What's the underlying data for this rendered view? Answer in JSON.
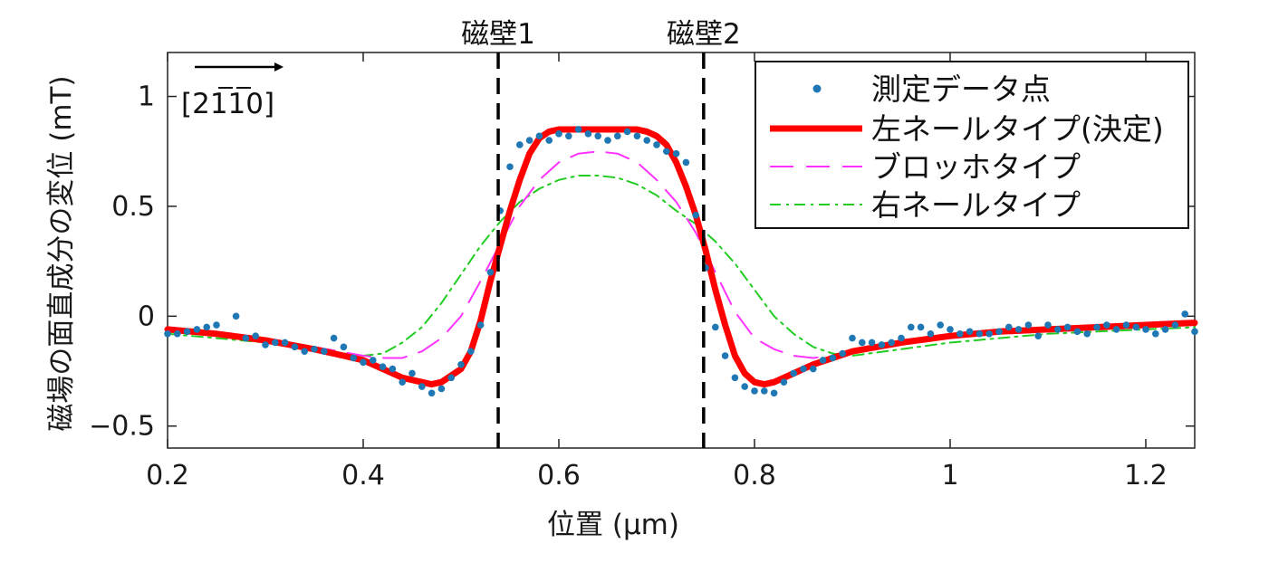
{
  "chart_data": {
    "type": "line",
    "title": "",
    "xlabel": "位置 (μm)",
    "ylabel": "磁場の面直成分の変位 (mT)",
    "xlim": [
      0.2,
      1.25
    ],
    "ylim": [
      -0.6,
      1.2
    ],
    "xticks": [
      0.2,
      0.4,
      0.6,
      0.8,
      1.0,
      1.2
    ],
    "xtick_labels": [
      "0.2",
      "0.4",
      "0.6",
      "0.8",
      "1",
      "1.2"
    ],
    "yticks": [
      -0.5,
      0,
      0.5,
      1.0
    ],
    "ytick_labels": [
      "−0.5",
      "0",
      "0.5",
      "1"
    ],
    "grid": false,
    "legend_position": "top-right",
    "direction_label": "[2110]",
    "walls": [
      {
        "label": "磁壁1",
        "x": 0.538
      },
      {
        "label": "磁壁2",
        "x": 0.748
      }
    ],
    "series": [
      {
        "name": "測定データ点",
        "style": "scatter",
        "color": "#1f77b4",
        "x": [
          0.2,
          0.21,
          0.22,
          0.23,
          0.24,
          0.25,
          0.27,
          0.28,
          0.29,
          0.3,
          0.31,
          0.32,
          0.33,
          0.34,
          0.35,
          0.36,
          0.37,
          0.38,
          0.39,
          0.4,
          0.41,
          0.42,
          0.43,
          0.44,
          0.45,
          0.46,
          0.47,
          0.48,
          0.49,
          0.5,
          0.51,
          0.52,
          0.53,
          0.54,
          0.55,
          0.56,
          0.57,
          0.58,
          0.59,
          0.6,
          0.61,
          0.62,
          0.63,
          0.64,
          0.65,
          0.66,
          0.67,
          0.68,
          0.69,
          0.7,
          0.71,
          0.72,
          0.73,
          0.74,
          0.75,
          0.76,
          0.77,
          0.78,
          0.79,
          0.8,
          0.81,
          0.82,
          0.83,
          0.84,
          0.85,
          0.86,
          0.87,
          0.88,
          0.89,
          0.9,
          0.91,
          0.92,
          0.93,
          0.94,
          0.95,
          0.96,
          0.97,
          0.98,
          0.99,
          1.0,
          1.01,
          1.02,
          1.03,
          1.04,
          1.05,
          1.06,
          1.07,
          1.08,
          1.09,
          1.1,
          1.11,
          1.12,
          1.13,
          1.14,
          1.15,
          1.16,
          1.17,
          1.18,
          1.19,
          1.2,
          1.21,
          1.22,
          1.23,
          1.24,
          1.25
        ],
        "y": [
          -0.08,
          -0.08,
          -0.07,
          -0.06,
          -0.05,
          -0.04,
          0.0,
          -0.1,
          -0.09,
          -0.13,
          -0.12,
          -0.12,
          -0.14,
          -0.16,
          -0.15,
          -0.16,
          -0.1,
          -0.14,
          -0.19,
          -0.21,
          -0.2,
          -0.23,
          -0.24,
          -0.3,
          -0.26,
          -0.32,
          -0.35,
          -0.33,
          -0.28,
          -0.22,
          -0.16,
          -0.04,
          0.2,
          0.48,
          0.68,
          0.78,
          0.8,
          0.82,
          0.8,
          0.83,
          0.82,
          0.85,
          0.83,
          0.82,
          0.8,
          0.82,
          0.84,
          0.82,
          0.8,
          0.78,
          0.75,
          0.74,
          0.7,
          0.46,
          0.22,
          -0.05,
          -0.18,
          -0.28,
          -0.32,
          -0.34,
          -0.34,
          -0.35,
          -0.3,
          -0.26,
          -0.24,
          -0.24,
          -0.2,
          -0.19,
          -0.17,
          -0.1,
          -0.12,
          -0.12,
          -0.13,
          -0.12,
          -0.1,
          -0.05,
          -0.05,
          -0.08,
          -0.04,
          -0.06,
          -0.08,
          -0.07,
          -0.08,
          -0.08,
          -0.07,
          -0.05,
          -0.06,
          -0.04,
          -0.09,
          -0.04,
          -0.06,
          -0.05,
          -0.07,
          -0.08,
          -0.05,
          -0.04,
          -0.06,
          -0.04,
          -0.05,
          -0.06,
          -0.08,
          -0.06,
          -0.04,
          0.01,
          -0.07
        ]
      },
      {
        "name": "左ネールタイプ(決定)",
        "style": "solid-thick",
        "color": "#ff0000",
        "x": [
          0.2,
          0.25,
          0.3,
          0.35,
          0.38,
          0.4,
          0.42,
          0.44,
          0.46,
          0.47,
          0.48,
          0.5,
          0.51,
          0.52,
          0.53,
          0.54,
          0.55,
          0.56,
          0.57,
          0.58,
          0.59,
          0.6,
          0.62,
          0.64,
          0.66,
          0.68,
          0.69,
          0.7,
          0.71,
          0.72,
          0.73,
          0.74,
          0.75,
          0.76,
          0.77,
          0.78,
          0.79,
          0.8,
          0.81,
          0.82,
          0.84,
          0.86,
          0.88,
          0.9,
          0.95,
          1.0,
          1.05,
          1.1,
          1.15,
          1.2,
          1.25
        ],
        "y": [
          -0.06,
          -0.08,
          -0.11,
          -0.15,
          -0.18,
          -0.2,
          -0.24,
          -0.28,
          -0.3,
          -0.31,
          -0.3,
          -0.24,
          -0.16,
          -0.02,
          0.16,
          0.32,
          0.48,
          0.62,
          0.74,
          0.81,
          0.84,
          0.85,
          0.85,
          0.85,
          0.85,
          0.85,
          0.84,
          0.82,
          0.78,
          0.7,
          0.59,
          0.46,
          0.3,
          0.12,
          -0.04,
          -0.18,
          -0.26,
          -0.3,
          -0.31,
          -0.3,
          -0.26,
          -0.22,
          -0.19,
          -0.16,
          -0.12,
          -0.09,
          -0.07,
          -0.06,
          -0.05,
          -0.04,
          -0.03
        ]
      },
      {
        "name": "ブロッホタイプ",
        "style": "dashed",
        "color": "#ff33ff",
        "x": [
          0.2,
          0.25,
          0.3,
          0.35,
          0.4,
          0.42,
          0.44,
          0.46,
          0.48,
          0.5,
          0.52,
          0.54,
          0.56,
          0.58,
          0.6,
          0.62,
          0.64,
          0.66,
          0.68,
          0.7,
          0.72,
          0.74,
          0.76,
          0.78,
          0.8,
          0.82,
          0.84,
          0.86,
          0.88,
          0.9,
          0.95,
          1.0,
          1.05,
          1.1,
          1.15,
          1.2,
          1.25
        ],
        "y": [
          -0.07,
          -0.09,
          -0.11,
          -0.14,
          -0.18,
          -0.19,
          -0.19,
          -0.16,
          -0.1,
          0.0,
          0.16,
          0.33,
          0.5,
          0.62,
          0.7,
          0.74,
          0.75,
          0.74,
          0.7,
          0.62,
          0.52,
          0.38,
          0.2,
          0.02,
          -0.1,
          -0.15,
          -0.18,
          -0.19,
          -0.18,
          -0.16,
          -0.12,
          -0.1,
          -0.08,
          -0.07,
          -0.06,
          -0.05,
          -0.04
        ]
      },
      {
        "name": "右ネールタイプ",
        "style": "dashdot",
        "color": "#22cc22",
        "x": [
          0.2,
          0.25,
          0.3,
          0.35,
          0.38,
          0.4,
          0.42,
          0.44,
          0.46,
          0.48,
          0.5,
          0.52,
          0.54,
          0.56,
          0.58,
          0.6,
          0.62,
          0.64,
          0.66,
          0.68,
          0.7,
          0.72,
          0.74,
          0.76,
          0.78,
          0.8,
          0.82,
          0.84,
          0.86,
          0.88,
          0.9,
          0.95,
          1.0,
          1.05,
          1.1,
          1.15,
          1.2,
          1.25
        ],
        "y": [
          -0.08,
          -0.1,
          -0.12,
          -0.15,
          -0.17,
          -0.18,
          -0.17,
          -0.12,
          -0.05,
          0.06,
          0.19,
          0.32,
          0.43,
          0.52,
          0.58,
          0.62,
          0.64,
          0.64,
          0.63,
          0.6,
          0.55,
          0.48,
          0.42,
          0.34,
          0.24,
          0.12,
          0.0,
          -0.08,
          -0.14,
          -0.17,
          -0.18,
          -0.15,
          -0.12,
          -0.1,
          -0.08,
          -0.07,
          -0.06,
          -0.05
        ]
      }
    ]
  }
}
